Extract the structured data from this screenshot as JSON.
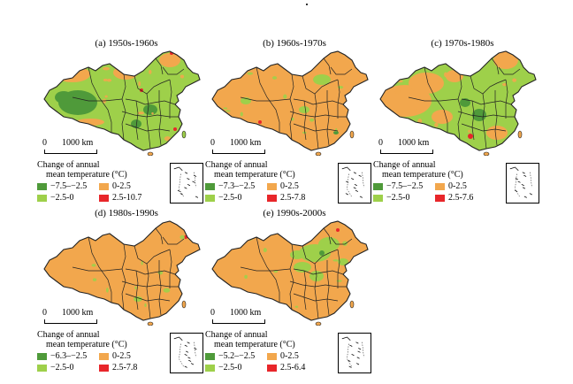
{
  "colors": {
    "class_dark_green": "#4f9a3a",
    "class_light_green": "#9ed04a",
    "class_orange": "#f2a74d",
    "class_red": "#e8262a",
    "boundary": "#222222"
  },
  "figure": {
    "scale_zero": "0",
    "scale_label": "1000 km",
    "legend_title_line1": "Change of annual",
    "legend_title_line2": "mean temperature (°C)"
  },
  "panels": [
    {
      "title": "(a) 1950s-1960s",
      "dominant_class": "light_green",
      "legend": [
        {
          "range": "−7.5–−2.5",
          "class": "dark_green"
        },
        {
          "range": "0-2.5",
          "class": "orange"
        },
        {
          "range": "−2.5-0",
          "class": "light_green"
        },
        {
          "range": "2.5-10.7",
          "class": "red"
        }
      ]
    },
    {
      "title": "(b) 1960s-1970s",
      "dominant_class": "orange",
      "legend": [
        {
          "range": "−7.3–−2.5",
          "class": "dark_green"
        },
        {
          "range": "0-2.5",
          "class": "orange"
        },
        {
          "range": "−2.5-0",
          "class": "light_green"
        },
        {
          "range": "2.5-7.8",
          "class": "red"
        }
      ]
    },
    {
      "title": "(c) 1970s-1980s",
      "dominant_class": "mixed",
      "legend": [
        {
          "range": "−7.5–−2.5",
          "class": "dark_green"
        },
        {
          "range": "0-2.5",
          "class": "orange"
        },
        {
          "range": "−2.5-0",
          "class": "light_green"
        },
        {
          "range": "2.5-7.6",
          "class": "red"
        }
      ]
    },
    {
      "title": "(d) 1980s-1990s",
      "dominant_class": "orange",
      "legend": [
        {
          "range": "−6.3–−2.5",
          "class": "dark_green"
        },
        {
          "range": "0-2.5",
          "class": "orange"
        },
        {
          "range": "−2.5-0",
          "class": "light_green"
        },
        {
          "range": "2.5-7.8",
          "class": "red"
        }
      ]
    },
    {
      "title": "(e) 1990s-2000s",
      "dominant_class": "orange",
      "legend": [
        {
          "range": "−5.2–−2.5",
          "class": "dark_green"
        },
        {
          "range": "0-2.5",
          "class": "orange"
        },
        {
          "range": "−2.5-0",
          "class": "light_green"
        },
        {
          "range": "2.5-6.4",
          "class": "red"
        }
      ]
    }
  ]
}
